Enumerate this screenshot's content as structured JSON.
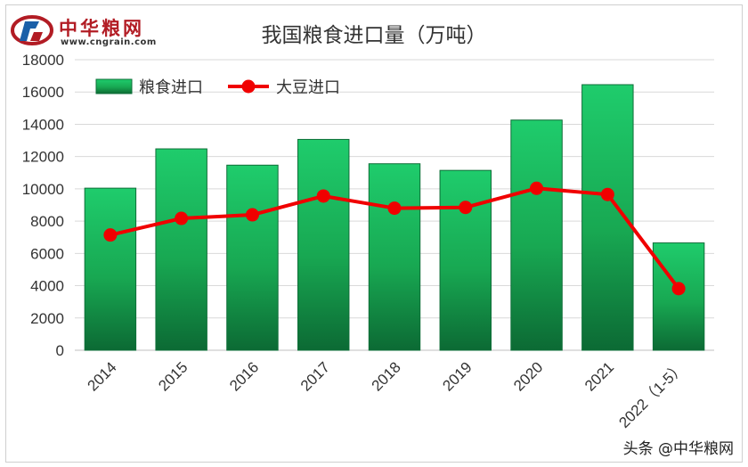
{
  "logo": {
    "name": "中华粮网",
    "url": "www.cngrain.com"
  },
  "watermark": "头条 @中华粮网",
  "chart_data": {
    "type": "bar",
    "title": "我国粮食进口量（万吨）",
    "categories": [
      "2014",
      "2015",
      "2016",
      "2017",
      "2018",
      "2019",
      "2020",
      "2021",
      "2022（1-5）"
    ],
    "series": [
      {
        "name": "粮食进口",
        "type": "bar",
        "values": [
          10042,
          12477,
          11468,
          13062,
          11555,
          11144,
          14262,
          16454,
          6650
        ],
        "color": "#1fc266"
      },
      {
        "name": "大豆进口",
        "type": "line",
        "values": [
          7140,
          8169,
          8391,
          9553,
          8803,
          8851,
          10033,
          9652,
          3820
        ],
        "color": "#f00000"
      }
    ],
    "yticks": [
      "0",
      "2000",
      "4000",
      "6000",
      "8000",
      "10000",
      "12000",
      "14000",
      "16000",
      "18000"
    ],
    "ylim": [
      0,
      18000
    ],
    "xlabel": "",
    "ylabel": "",
    "grid": true,
    "legend": "top-left"
  }
}
